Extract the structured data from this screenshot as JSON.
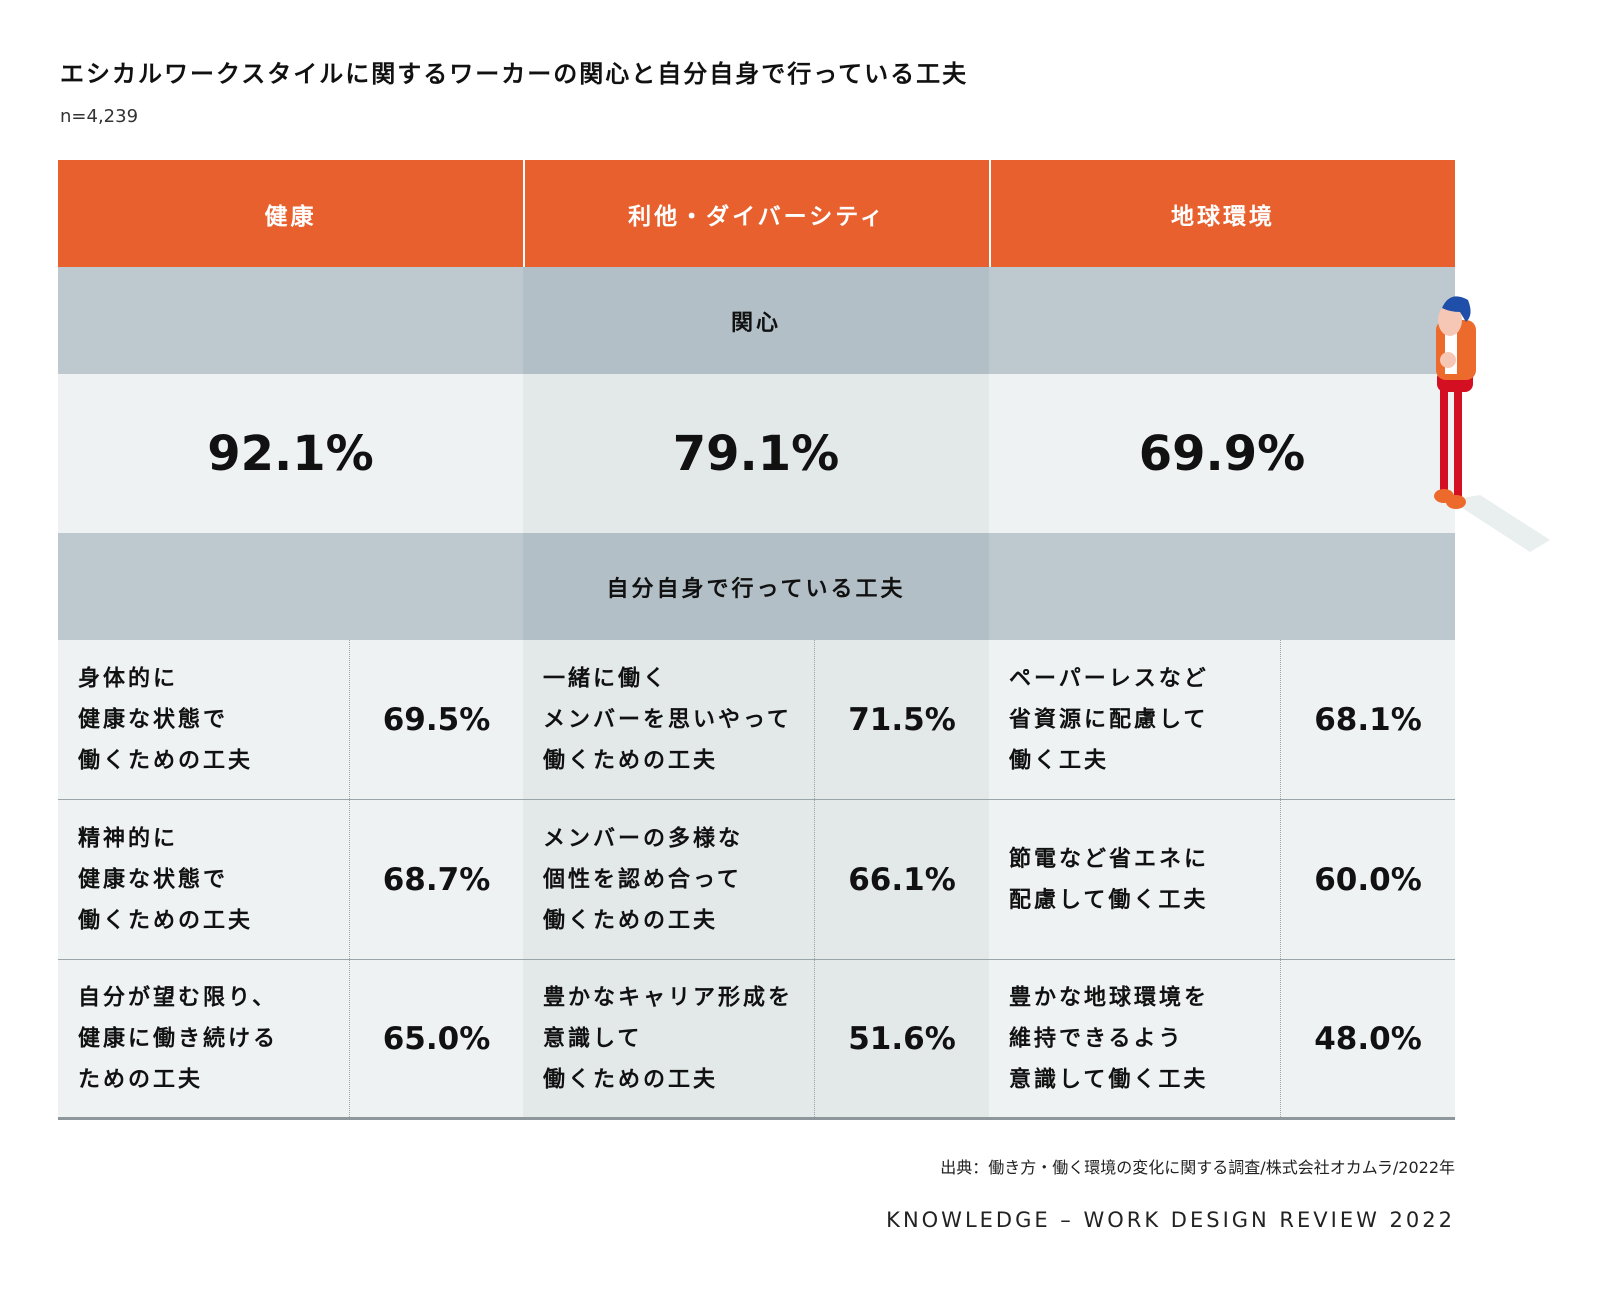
{
  "title": "エシカルワークスタイルに関するワーカーの関心と自分自身で行っている工夫",
  "sample": "n=4,239",
  "chart_data": {
    "type": "table",
    "columns": [
      "健康",
      "利他・ダイバーシティ",
      "地球環境"
    ],
    "interest_label": "関心",
    "interest_values": [
      "92.1%",
      "79.1%",
      "69.9%"
    ],
    "efforts_label": "自分自身で行っている工夫",
    "efforts": [
      [
        {
          "label": "身体的に\n健康な状態で\n働くための工夫",
          "value": "69.5%"
        },
        {
          "label": "精神的に\n健康な状態で\n働くための工夫",
          "value": "68.7%"
        },
        {
          "label": "自分が望む限り、\n健康に働き続ける\nための工夫",
          "value": "65.0%"
        }
      ],
      [
        {
          "label": "一緒に働く\nメンバーを思いやって\n働くための工夫",
          "value": "71.5%"
        },
        {
          "label": "メンバーの多様な\n個性を認め合って\n働くための工夫",
          "value": "66.1%"
        },
        {
          "label": "豊かなキャリア形成を\n意識して\n働くための工夫",
          "value": "51.6%"
        }
      ],
      [
        {
          "label": "ペーパーレスなど\n省資源に配慮して\n働く工夫",
          "value": "68.1%"
        },
        {
          "label": "節電など省エネに\n配慮して働く工夫",
          "value": "60.0%"
        },
        {
          "label": "豊かな地球環境を\n維持できるよう\n意識して働く工夫",
          "value": "48.0%"
        }
      ]
    ]
  },
  "source": "出典：働き方・働く環境の変化に関する調査/株式会社オカムラ/2022年",
  "brand": "KNOWLEDGE – WORK DESIGN REVIEW 2022",
  "colors": {
    "accent": "#E8602E",
    "band": "#BDC9CE",
    "light": "#EEF2F2"
  }
}
